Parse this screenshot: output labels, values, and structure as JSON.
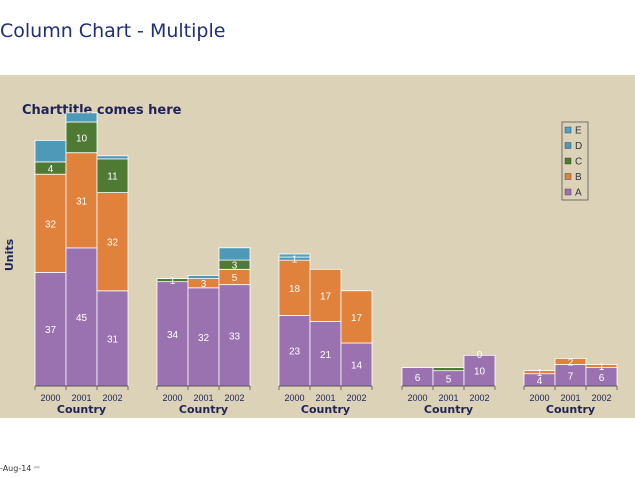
{
  "page": {
    "title": "Column Chart - Multiple",
    "footer_date": "-Aug-14"
  },
  "chart_data": {
    "type": "bar",
    "stacked": true,
    "title": "Charttitle comes here",
    "ylabel": "Units",
    "group_axis_label": "Country",
    "categories": [
      "2000",
      "2001",
      "2002"
    ],
    "group_count": 5,
    "ylim": [
      0,
      70
    ],
    "legend_placement": "top-right",
    "grid": false,
    "series": [
      {
        "name": "A",
        "color": "#9b72b0",
        "values": [
          [
            37,
            45,
            31
          ],
          [
            34,
            32,
            33
          ],
          [
            23,
            21,
            14
          ],
          [
            6,
            5,
            10
          ],
          [
            4,
            7,
            6
          ]
        ]
      },
      {
        "name": "B",
        "color": "#e0823c",
        "values": [
          [
            32,
            31,
            32
          ],
          [
            0,
            3,
            5
          ],
          [
            18,
            17,
            17
          ],
          [
            0,
            0,
            0
          ],
          [
            1,
            2,
            1
          ]
        ]
      },
      {
        "name": "C",
        "color": "#4e7a34",
        "values": [
          [
            4,
            10,
            11
          ],
          [
            1,
            0,
            3
          ],
          [
            0,
            0,
            0
          ],
          [
            0,
            1,
            0
          ],
          [
            0,
            0,
            0
          ]
        ]
      },
      {
        "name": "D",
        "color": "#4e99b8",
        "values": [
          [
            7,
            3,
            1
          ],
          [
            0,
            1,
            4
          ],
          [
            1,
            0,
            0
          ],
          [
            0,
            0,
            0
          ],
          [
            0,
            0,
            0
          ]
        ]
      },
      {
        "name": "E",
        "color": "#4aa3c9",
        "values": [
          [
            0,
            0,
            0
          ],
          [
            0,
            0,
            0
          ],
          [
            1,
            0,
            0
          ],
          [
            0,
            0,
            0
          ],
          [
            0,
            0,
            0
          ]
        ]
      }
    ],
    "data_labels": [
      [
        [
          "37",
          "32",
          "4",
          ""
        ],
        [
          "45",
          "31",
          "10",
          ""
        ],
        [
          "31",
          "32",
          "11",
          ""
        ]
      ],
      [
        [
          "34",
          "",
          "1",
          ""
        ],
        [
          "32",
          "3",
          "",
          ""
        ],
        [
          "33",
          "5",
          "3",
          ""
        ]
      ],
      [
        [
          "23",
          "18",
          "",
          "1"
        ],
        [
          "21",
          "17",
          "",
          ""
        ],
        [
          "14",
          "17",
          "",
          ""
        ]
      ],
      [
        [
          "6",
          "",
          "",
          ""
        ],
        [
          "5",
          "",
          "",
          ""
        ],
        [
          "10",
          "0",
          "",
          ""
        ]
      ],
      [
        [
          "4",
          "1",
          "",
          ""
        ],
        [
          "7",
          "2",
          "",
          ""
        ],
        [
          "6",
          "1",
          "",
          ""
        ]
      ]
    ],
    "legend_order": [
      "E",
      "D",
      "C",
      "B",
      "A"
    ]
  }
}
